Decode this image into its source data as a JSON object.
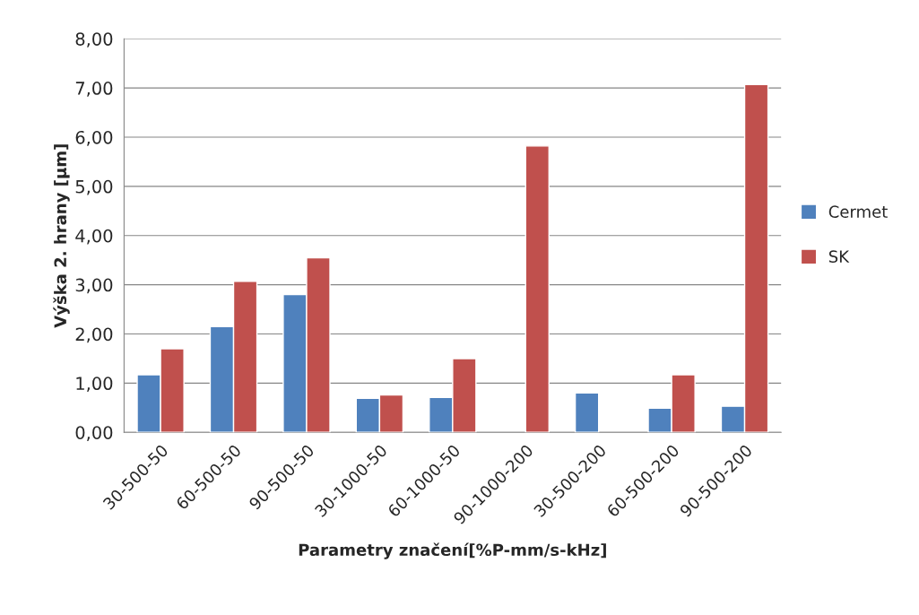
{
  "chart_data": {
    "type": "bar",
    "xlabel": "Parametry značení[%P-mm/s-kHz]",
    "ylabel": "Výška 2. hrany [µm]",
    "categories": [
      "30-500-50",
      "60-500-50",
      "90-500-50",
      "30-1000-50",
      "60-1000-50",
      "90-1000-200",
      "30-500-200",
      "60-500-200",
      "90-500-200"
    ],
    "series": [
      {
        "name": "Cermet",
        "color": "#4f81bd",
        "values": [
          1.17,
          2.15,
          2.8,
          0.69,
          0.71,
          null,
          0.8,
          0.49,
          0.53
        ]
      },
      {
        "name": "SK",
        "color": "#c0504d",
        "values": [
          1.7,
          3.07,
          3.55,
          0.76,
          1.5,
          5.82,
          null,
          1.17,
          7.07
        ]
      }
    ],
    "ylim": [
      0,
      8
    ],
    "yticks": [
      {
        "value": 0,
        "label": "0,00"
      },
      {
        "value": 1,
        "label": "1,00"
      },
      {
        "value": 2,
        "label": "2,00"
      },
      {
        "value": 3,
        "label": "3,00"
      },
      {
        "value": 4,
        "label": "4,00"
      },
      {
        "value": 5,
        "label": "5,00"
      },
      {
        "value": 6,
        "label": "6,00"
      },
      {
        "value": 7,
        "label": "7,00"
      },
      {
        "value": 8,
        "label": "8,00"
      }
    ],
    "grid": "y",
    "legend": "right"
  }
}
